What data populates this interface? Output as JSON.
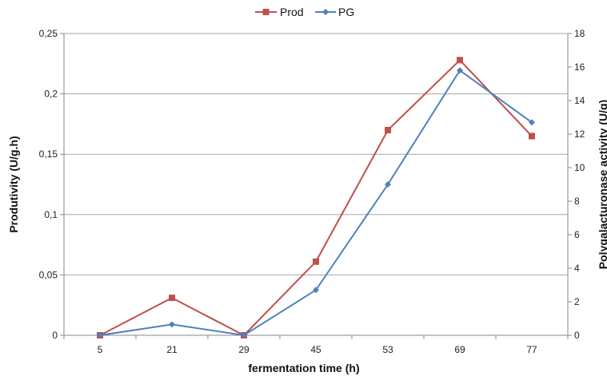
{
  "chart_data": {
    "type": "line",
    "categories": [
      "5",
      "21",
      "29",
      "45",
      "53",
      "69",
      "77"
    ],
    "xlabel": "fermentation time (h)",
    "ylabel_left": "Produtivity (U/g.h)",
    "ylabel_right": "Polygalacturonase activity (U/g)",
    "y_left": {
      "min": 0,
      "max": 0.25,
      "ticks": [
        "0",
        "0,05",
        "0,1",
        "0,15",
        "0,2",
        "0,25"
      ],
      "tick_values": [
        0,
        0.05,
        0.1,
        0.15,
        0.2,
        0.25
      ]
    },
    "y_right": {
      "min": 0,
      "max": 18,
      "ticks": [
        "0",
        "2",
        "4",
        "6",
        "8",
        "10",
        "12",
        "14",
        "16",
        "18"
      ],
      "tick_values": [
        0,
        2,
        4,
        6,
        8,
        10,
        12,
        14,
        16,
        18
      ]
    },
    "grid": true,
    "legend_position": "top-center",
    "series": [
      {
        "name": "Prod",
        "axis": "left",
        "color": "#c0504d",
        "marker": "square",
        "values": [
          0,
          0.031,
          0,
          0.061,
          0.17,
          0.228,
          0.165
        ]
      },
      {
        "name": "PG",
        "axis": "right",
        "color": "#4f81bd",
        "marker": "diamond",
        "values": [
          0,
          0.65,
          0,
          2.7,
          9.0,
          15.8,
          12.7
        ]
      }
    ]
  }
}
